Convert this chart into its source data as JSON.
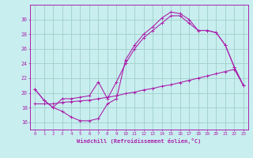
{
  "xlabel": "Windchill (Refroidissement éolien,°C)",
  "bg_color": "#c8eef0",
  "grid_color": "#a0d0c8",
  "line_color": "#aa22aa",
  "x_ticks": [
    0,
    1,
    2,
    3,
    4,
    5,
    6,
    7,
    8,
    9,
    10,
    11,
    12,
    13,
    14,
    15,
    16,
    17,
    18,
    19,
    20,
    21,
    22,
    23
  ],
  "y_ticks": [
    16,
    18,
    20,
    22,
    24,
    26,
    28,
    30
  ],
  "ylim": [
    15.0,
    32.0
  ],
  "xlim": [
    -0.5,
    23.5
  ],
  "line1_x": [
    0,
    1,
    2,
    3,
    4,
    5,
    6,
    7,
    8,
    9,
    10,
    11,
    12,
    13,
    14,
    15,
    16,
    17,
    18,
    19,
    20,
    21,
    22,
    23
  ],
  "line1_y": [
    20.5,
    19.0,
    18.0,
    17.5,
    16.7,
    16.2,
    16.2,
    16.5,
    18.5,
    19.2,
    24.5,
    26.5,
    28.0,
    29.0,
    30.2,
    31.0,
    30.8,
    30.0,
    28.5,
    28.5,
    28.2,
    26.5,
    23.5,
    21.0
  ],
  "line2_x": [
    0,
    1,
    2,
    3,
    4,
    5,
    6,
    7,
    8,
    9,
    10,
    11,
    12,
    13,
    14,
    15,
    16,
    17,
    18,
    19,
    20,
    21,
    22,
    23
  ],
  "line2_y": [
    18.5,
    18.5,
    18.5,
    18.7,
    18.8,
    18.9,
    19.0,
    19.2,
    19.4,
    19.6,
    19.9,
    20.1,
    20.4,
    20.6,
    20.9,
    21.1,
    21.4,
    21.7,
    22.0,
    22.3,
    22.6,
    22.9,
    23.2,
    21.0
  ],
  "line3_x": [
    0,
    1,
    2,
    3,
    4,
    5,
    6,
    7,
    8,
    9,
    10,
    11,
    12,
    13,
    14,
    15,
    16,
    17,
    18,
    19,
    20,
    21,
    22,
    23
  ],
  "line3_y": [
    20.5,
    19.0,
    18.0,
    19.2,
    19.2,
    19.4,
    19.6,
    21.5,
    19.2,
    21.5,
    24.0,
    26.0,
    27.5,
    28.5,
    29.5,
    30.5,
    30.5,
    29.5,
    28.5,
    28.5,
    28.2,
    26.5,
    23.5,
    21.0
  ]
}
